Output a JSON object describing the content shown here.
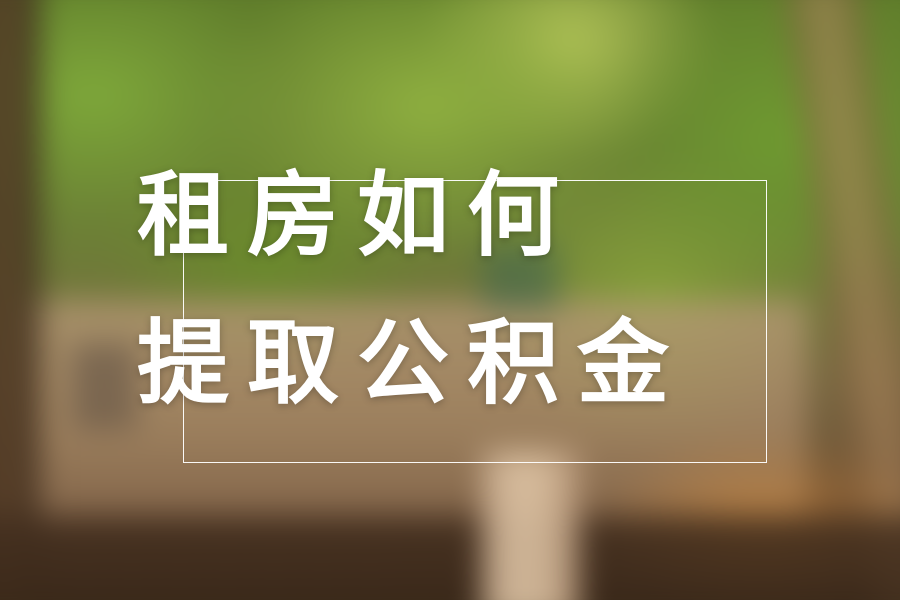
{
  "headline": {
    "line1": "租房如何",
    "line2": "提取公积金"
  },
  "colors": {
    "text": "#ffffff",
    "frame": "#ffffff",
    "foliage": "#7ea83a",
    "warm_accent": "#e6963c"
  }
}
